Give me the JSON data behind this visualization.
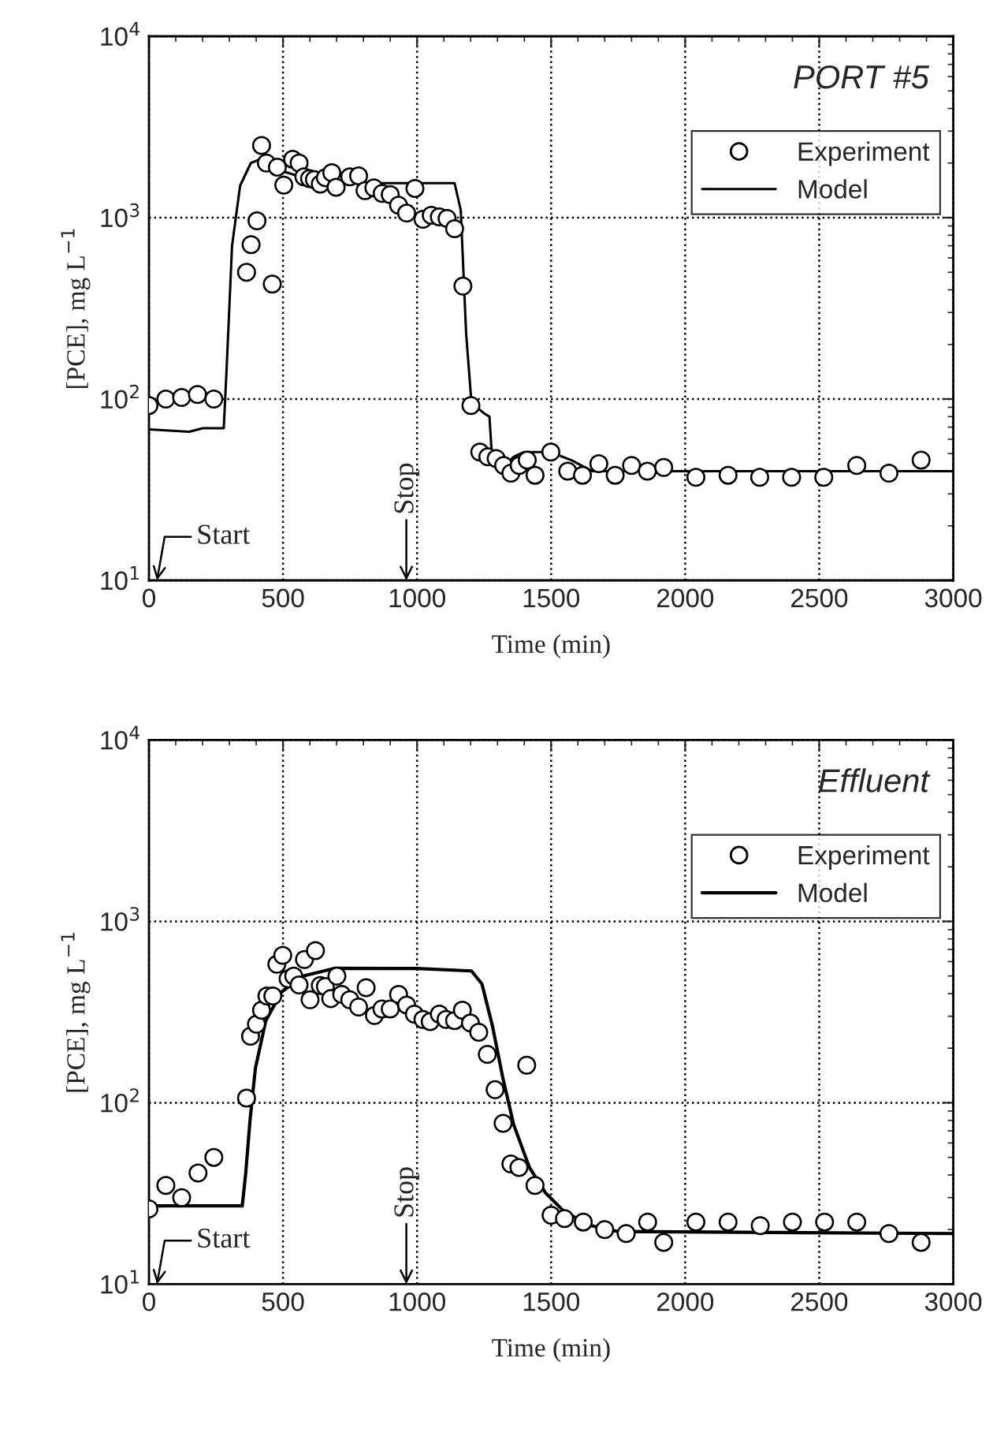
{
  "chart_data": [
    {
      "type": "scatter",
      "title": "PORT #5",
      "xlabel": "Time (min)",
      "ylabel": "[PCE], mg L$^{−1}$",
      "log": "y",
      "grid": true,
      "legend": "top right",
      "xlim": [
        0,
        3000
      ],
      "xticks": [
        0,
        500,
        1000,
        1500,
        2000,
        2500,
        3000
      ],
      "ylim": [
        10,
        10000
      ],
      "yticks": [
        {
          "value": 10,
          "label": "10$^{1}$"
        },
        {
          "value": 100,
          "label": "10$^{2}$"
        },
        {
          "value": 1000,
          "label": "10$^{3}$"
        },
        {
          "value": 10000,
          "label": "10$^{4}$"
        }
      ],
      "annotations": [
        "Start",
        "Stop"
      ],
      "series": [
        {
          "name": "Experiment",
          "marker": "circle",
          "color": "#000000",
          "x": [
            0,
            63,
            122,
            181,
            242,
            364,
            381,
            403,
            420,
            438,
            460,
            479,
            503,
            536,
            560,
            578,
            599,
            617,
            639,
            658,
            682,
            698,
            749,
            782,
            806,
            839,
            870,
            900,
            931,
            961,
            992,
            1022,
            1053,
            1083,
            1112,
            1140,
            1171,
            1201,
            1234,
            1264,
            1295,
            1323,
            1350,
            1381,
            1411,
            1440,
            1499,
            1562,
            1617,
            1678,
            1739,
            1800,
            1859,
            1920,
            2040,
            2160,
            2278,
            2397,
            2517,
            2640,
            2760,
            2880
          ],
          "values": [
            92,
            100,
            102,
            106,
            100,
            500,
            710,
            960,
            2500,
            2000,
            430,
            1900,
            1510,
            2100,
            2000,
            1680,
            1640,
            1620,
            1530,
            1660,
            1770,
            1470,
            1680,
            1700,
            1410,
            1460,
            1360,
            1340,
            1170,
            1060,
            1450,
            980,
            1030,
            1010,
            990,
            870,
            420,
            92,
            51,
            48,
            47,
            43,
            39,
            43,
            46,
            38,
            51,
            40,
            38,
            44,
            38,
            43,
            40,
            42,
            37,
            38,
            37,
            37,
            37,
            43,
            39,
            46
          ]
        },
        {
          "name": "Model",
          "type": "line",
          "marker": "none",
          "line_style": "solid",
          "color": "#000000",
          "x": [
            0,
            150,
            200,
            279,
            290,
            310,
            340,
            380,
            436,
            500,
            600,
            700,
            1140,
            1163,
            1183,
            1203,
            1252,
            1270,
            1281,
            1320,
            1360,
            1399,
            1497,
            1576,
            1654,
            3000
          ],
          "values": [
            68,
            66,
            69,
            69,
            150,
            700,
            1500,
            2000,
            2160,
            1800,
            1620,
            1550,
            1550,
            1100,
            230,
            95,
            83,
            80,
            44,
            42,
            48,
            51,
            51,
            46,
            40,
            40
          ]
        }
      ]
    },
    {
      "type": "scatter",
      "title": "Effluent",
      "xlabel": "Time (min)",
      "ylabel": "[PCE], mg L$^{−1}$",
      "log": "y",
      "grid": true,
      "legend": "top right",
      "xlim": [
        0,
        3000
      ],
      "xticks": [
        0,
        500,
        1000,
        1500,
        2000,
        2500,
        3000
      ],
      "ylim": [
        10,
        10000
      ],
      "yticks": [
        {
          "value": 10,
          "label": "10$^{1}$"
        },
        {
          "value": 100,
          "label": "10$^{2}$"
        },
        {
          "value": 1000,
          "label": "10$^{3}$"
        },
        {
          "value": 10000,
          "label": "10$^{4}$"
        }
      ],
      "annotations": [
        "Start",
        "Stop"
      ],
      "series": [
        {
          "name": "Experiment",
          "marker": "circle",
          "color": "#000000",
          "x": [
            0,
            63,
            122,
            183,
            242,
            364,
            379,
            401,
            420,
            440,
            462,
            477,
            499,
            519,
            540,
            560,
            580,
            601,
            621,
            639,
            658,
            678,
            701,
            719,
            749,
            782,
            810,
            841,
            869,
            900,
            931,
            961,
            990,
            1022,
            1049,
            1083,
            1108,
            1140,
            1169,
            1199,
            1230,
            1262,
            1291,
            1321,
            1350,
            1380,
            1409,
            1440,
            1500,
            1550,
            1620,
            1700,
            1780,
            1860,
            1920,
            2040,
            2160,
            2280,
            2400,
            2520,
            2640,
            2760,
            2880
          ],
          "values": [
            26,
            35,
            30,
            41,
            50,
            106,
            233,
            271,
            324,
            388,
            388,
            580,
            650,
            482,
            499,
            446,
            616,
            370,
            690,
            443,
            437,
            375,
            499,
            396,
            370,
            337,
            431,
            303,
            329,
            329,
            396,
            346,
            308,
            288,
            280,
            308,
            288,
            284,
            324,
            275,
            245,
            185,
            118,
            77,
            46,
            44,
            161,
            35,
            24,
            23,
            22,
            20,
            19,
            22,
            17,
            22,
            22,
            21,
            22,
            22,
            22,
            19,
            17
          ]
        },
        {
          "name": "Model",
          "type": "line",
          "marker": "none",
          "line_style": "solid",
          "color": "#000000",
          "x": [
            0,
            348,
            361,
            377,
            397,
            436,
            495,
            574,
            692,
            1000,
            1203,
            1242,
            1281,
            1320,
            1360,
            1419,
            1478,
            1550,
            1650,
            1750,
            3000
          ],
          "values": [
            27,
            27,
            41,
            80,
            155,
            284,
            409,
            499,
            551,
            550,
            533,
            452,
            266,
            137,
            76,
            44,
            32,
            25,
            21,
            19.5,
            19
          ]
        }
      ]
    }
  ]
}
